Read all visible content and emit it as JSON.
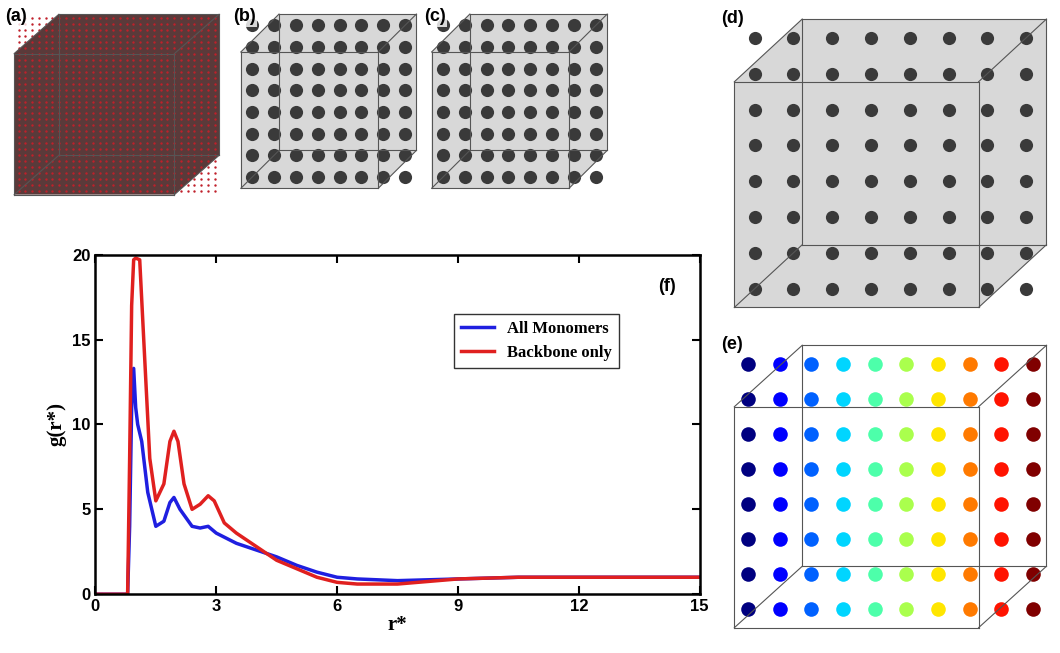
{
  "panels": [
    {
      "label": "(a)"
    },
    {
      "label": "(b)"
    },
    {
      "label": "(c)"
    },
    {
      "label": "(d)"
    },
    {
      "label": "(e)"
    }
  ],
  "chart_data": {
    "type": "line",
    "annotations": [
      "(f)"
    ],
    "x_label": "r*",
    "y_label": "g(r*)",
    "xlim": [
      0,
      15
    ],
    "xticks": [
      0,
      3,
      6,
      9,
      12,
      15
    ],
    "ylim": [
      0,
      20
    ],
    "yticks": [
      0,
      5,
      10,
      15,
      20
    ],
    "legend": "upper right",
    "grid": false,
    "series": [
      {
        "name": "All Monomers",
        "color": "#1f1fe0",
        "x": [
          0,
          0.8,
          0.85,
          0.9,
          0.95,
          1.0,
          1.05,
          1.15,
          1.3,
          1.5,
          1.7,
          1.85,
          1.95,
          2.1,
          2.4,
          2.6,
          2.8,
          3.0,
          3.5,
          4.0,
          4.5,
          5.0,
          5.5,
          6.0,
          6.5,
          7.5,
          9.0,
          10.5,
          12.0,
          15.0
        ],
        "values": [
          0,
          0,
          4.0,
          11.0,
          13.3,
          11.0,
          10.0,
          9.0,
          6.0,
          4.0,
          4.3,
          5.4,
          5.7,
          5.0,
          4.0,
          3.9,
          4.0,
          3.6,
          3.0,
          2.6,
          2.2,
          1.7,
          1.3,
          1.0,
          0.9,
          0.8,
          0.9,
          1.0,
          1.0,
          1.0
        ]
      },
      {
        "name": "Backbone only",
        "color": "#e0201f",
        "x": [
          0,
          0.8,
          0.85,
          0.9,
          0.95,
          1.0,
          1.1,
          1.2,
          1.35,
          1.5,
          1.7,
          1.85,
          1.95,
          2.05,
          2.2,
          2.4,
          2.6,
          2.8,
          2.95,
          3.2,
          3.5,
          4.0,
          4.5,
          5.0,
          5.5,
          6.0,
          6.5,
          7.5,
          9.0,
          10.5,
          12.0,
          15.0
        ],
        "values": [
          0,
          0,
          8.0,
          17.0,
          19.7,
          19.8,
          19.7,
          15.0,
          8.0,
          5.5,
          6.5,
          9.0,
          9.6,
          9.0,
          6.5,
          5.0,
          5.3,
          5.8,
          5.5,
          4.2,
          3.6,
          2.8,
          2.0,
          1.5,
          1.0,
          0.7,
          0.6,
          0.6,
          0.9,
          1.0,
          1.0,
          1.0
        ]
      }
    ]
  }
}
